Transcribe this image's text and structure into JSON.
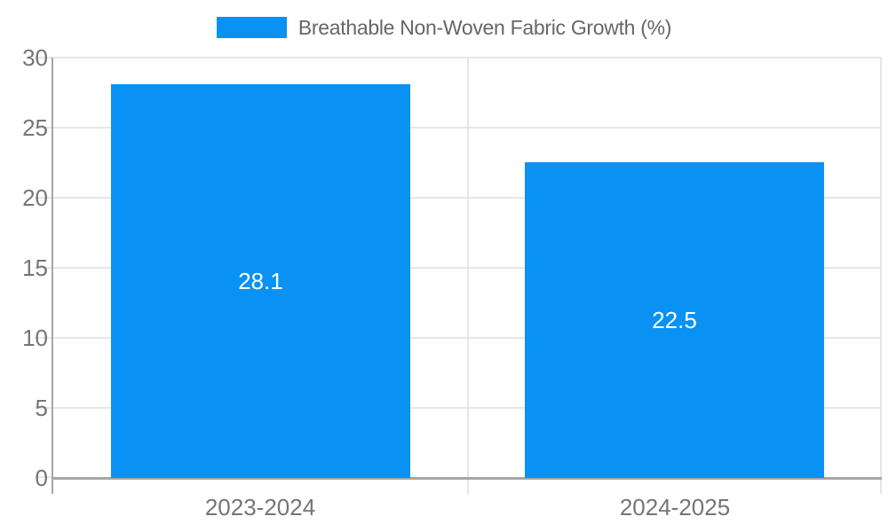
{
  "chart_data": {
    "type": "bar",
    "title": "",
    "legend": {
      "position": "top",
      "label": "Breathable Non-Woven Fabric Growth (%)"
    },
    "categories": [
      "2023-2024",
      "2024-2025"
    ],
    "series": [
      {
        "name": "Breathable Non-Woven Fabric Growth (%)",
        "values": [
          28.1,
          22.5
        ],
        "data_labels": [
          "28.1",
          "22.5"
        ]
      }
    ],
    "xlabel": "",
    "ylabel": "",
    "ylim": [
      0,
      30
    ],
    "yticks": [
      0,
      5,
      10,
      15,
      20,
      25,
      30
    ],
    "ytick_labels": [
      "0",
      "5",
      "10",
      "15",
      "20",
      "25",
      "30"
    ],
    "grid": true,
    "colors": {
      "bar": "#0992f4",
      "grid": "#e6e6e6",
      "axis": "#a6a6a6",
      "tick_label": "#757575",
      "legend_text": "#666666",
      "data_label": "#ffffff",
      "background": "#ffffff"
    }
  }
}
